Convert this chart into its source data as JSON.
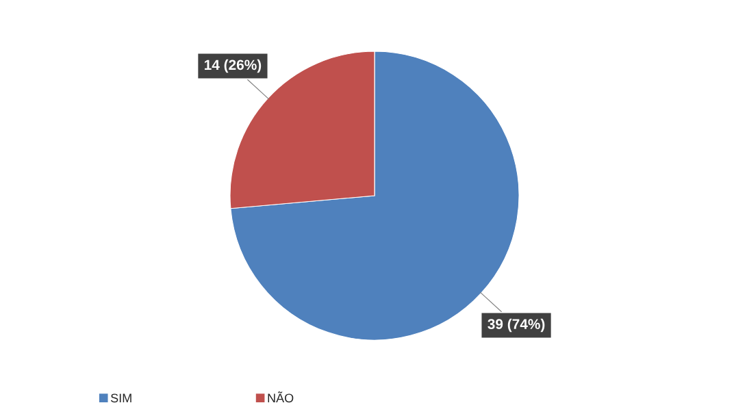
{
  "chart_data": {
    "type": "pie",
    "categories": [
      "SIM",
      "NÃO"
    ],
    "values": [
      39,
      14
    ],
    "colors": [
      "#4f81bd",
      "#c0504d"
    ],
    "value_labels": [
      "39 (74%)",
      "14 (26%)"
    ],
    "legend": "bottom left"
  }
}
